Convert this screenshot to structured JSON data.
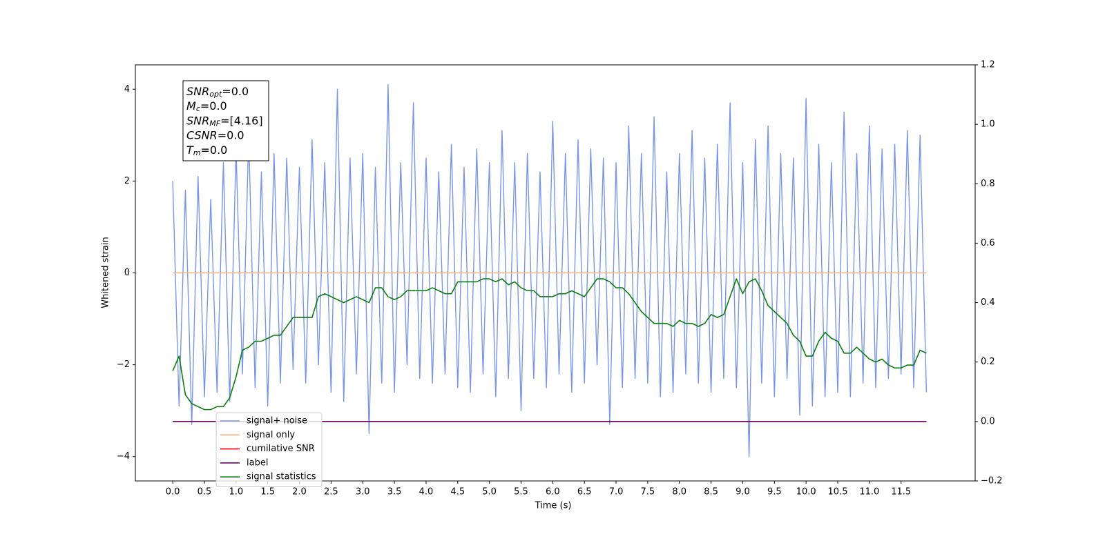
{
  "chart_data": {
    "type": "line",
    "x_label": "Time (s)",
    "y_label": "Whitened strain",
    "xlim": [
      -0.59,
      12.67
    ],
    "ylim": [
      -4.53,
      4.53
    ],
    "y2lim": [
      -0.2,
      1.2
    ],
    "xticks": [
      {
        "value": 0,
        "label": "0.0"
      },
      0.5,
      {
        "value": 1,
        "label": "1.0"
      },
      1.5,
      {
        "value": 2,
        "label": "2.0"
      },
      2.5,
      {
        "value": 3,
        "label": "3.0"
      },
      3.5,
      {
        "value": 4,
        "label": "4.0"
      },
      4.5,
      {
        "value": 5,
        "label": "5.0"
      },
      5.5,
      {
        "value": 6,
        "label": "6.0"
      },
      6.5,
      {
        "value": 7,
        "label": "7.0"
      },
      7.5,
      {
        "value": 8,
        "label": "8.0"
      },
      8.5,
      {
        "value": 9,
        "label": "9.0"
      },
      9.5,
      {
        "value": 10,
        "label": "10.0"
      },
      10.5,
      {
        "value": 11,
        "label": "11.0"
      },
      11.5
    ],
    "yticks": [
      {
        "value": -4,
        "label": "−4"
      },
      {
        "value": -2,
        "label": "−2"
      },
      0,
      2,
      4
    ],
    "y2ticks": [
      {
        "value": -0.2,
        "label": "−0.2"
      },
      {
        "value": 0,
        "label": "0.0"
      },
      0.2,
      0.4,
      0.6,
      0.8,
      {
        "value": 1,
        "label": "1.0"
      },
      1.2
    ],
    "legend": "lower left",
    "annotations": [
      {
        "symbol": "SNR",
        "sub": "opt",
        "text": "=0.0"
      },
      {
        "symbol": "M",
        "sub": "c",
        "text": "=0.0"
      },
      {
        "symbol": "SNR",
        "sub": "MF",
        "text": "=[4.16]"
      },
      {
        "symbol": "CSNR",
        "text": "=0.0"
      },
      {
        "symbol": "T",
        "sub": "m",
        "text": "=0.0"
      }
    ],
    "x": [
      0.0,
      0.1,
      0.2,
      0.3,
      0.4,
      0.5,
      0.6,
      0.7,
      0.8,
      0.9,
      1.0,
      1.1,
      1.2,
      1.3,
      1.4,
      1.5,
      1.6,
      1.7,
      1.8,
      1.9,
      2.0,
      2.1,
      2.2,
      2.3,
      2.4,
      2.5,
      2.6,
      2.7,
      2.8,
      2.9,
      3.0,
      3.1,
      3.2,
      3.3,
      3.4,
      3.5,
      3.6,
      3.7,
      3.8,
      3.9,
      4.0,
      4.1,
      4.2,
      4.3,
      4.4,
      4.5,
      4.6,
      4.7,
      4.8,
      4.9,
      5.0,
      5.1,
      5.2,
      5.3,
      5.4,
      5.5,
      5.6,
      5.7,
      5.8,
      5.9,
      6.0,
      6.1,
      6.2,
      6.3,
      6.4,
      6.5,
      6.6,
      6.7,
      6.8,
      6.9,
      7.0,
      7.1,
      7.2,
      7.3,
      7.4,
      7.5,
      7.6,
      7.7,
      7.8,
      7.9,
      8.0,
      8.1,
      8.2,
      8.3,
      8.4,
      8.5,
      8.6,
      8.7,
      8.8,
      8.9,
      9.0,
      9.1,
      9.2,
      9.3,
      9.4,
      9.5,
      9.6,
      9.7,
      9.8,
      9.9,
      10.0,
      10.1,
      10.2,
      10.3,
      10.4,
      10.5,
      10.6,
      10.7,
      10.8,
      10.9,
      11.0,
      11.1,
      11.2,
      11.3,
      11.4,
      11.5,
      11.6,
      11.7,
      11.8,
      11.9
    ],
    "series": [
      {
        "name": "signal+ noise",
        "color": "#7995e9",
        "values": [
          2.0,
          -2.9,
          1.8,
          -3.3,
          2.1,
          -2.7,
          1.6,
          -2.6,
          2.4,
          -2.8,
          2.7,
          -2.2,
          3.0,
          -2.5,
          2.2,
          -2.9,
          2.6,
          -2.4,
          2.5,
          -2.1,
          2.3,
          -2.4,
          2.9,
          -2.0,
          2.4,
          -2.6,
          4.0,
          -2.8,
          2.5,
          -2.2,
          2.6,
          -3.5,
          2.3,
          -2.4,
          4.1,
          -2.6,
          2.4,
          -2.0,
          3.7,
          -2.3,
          2.5,
          -2.4,
          2.2,
          -2.2,
          2.8,
          -2.5,
          2.3,
          -2.6,
          2.7,
          -2.2,
          2.4,
          -2.7,
          3.1,
          -2.3,
          2.4,
          -3.0,
          2.6,
          -2.3,
          2.2,
          -2.5,
          3.3,
          -2.2,
          2.6,
          -2.6,
          2.9,
          -2.4,
          2.7,
          -2.0,
          2.5,
          -3.3,
          2.4,
          -2.5,
          3.2,
          -2.3,
          2.6,
          -2.4,
          3.4,
          -2.7,
          2.2,
          -2.6,
          2.6,
          -2.2,
          3.1,
          -2.4,
          2.5,
          -2.6,
          2.8,
          -2.3,
          3.7,
          -2.5,
          2.4,
          -4.0,
          2.9,
          -2.4,
          3.2,
          -2.7,
          2.6,
          -2.3,
          2.5,
          -3.1,
          3.8,
          -2.9,
          2.8,
          -2.7,
          2.4,
          -2.6,
          3.5,
          -2.7,
          2.6,
          -2.4,
          3.2,
          -2.5,
          2.7,
          -2.3,
          2.8,
          -2.2,
          3.1,
          -2.5,
          3.0,
          -2.6
        ]
      },
      {
        "name": "signal only",
        "color": "#f0b27a",
        "x": [
          0.0,
          11.9
        ],
        "values": [
          0,
          0
        ]
      },
      {
        "name": "cumilative SNR",
        "color": "#ff0000",
        "axis": "y2",
        "x": [
          0.0,
          11.9
        ],
        "values": [
          0,
          0
        ]
      },
      {
        "name": "label",
        "color": "#6a0a6a",
        "axis": "y2",
        "x": [
          0.0,
          11.9
        ],
        "values": [
          0,
          0
        ]
      },
      {
        "name": "signal statistics",
        "color": "#0a7d0a",
        "axis": "y2",
        "values": [
          0.17,
          0.22,
          0.09,
          0.06,
          0.05,
          0.04,
          0.04,
          0.05,
          0.05,
          0.08,
          0.15,
          0.24,
          0.25,
          0.27,
          0.27,
          0.28,
          0.29,
          0.29,
          0.32,
          0.35,
          0.35,
          0.35,
          0.35,
          0.42,
          0.43,
          0.42,
          0.41,
          0.4,
          0.41,
          0.42,
          0.41,
          0.4,
          0.45,
          0.45,
          0.42,
          0.41,
          0.42,
          0.44,
          0.44,
          0.44,
          0.44,
          0.45,
          0.44,
          0.43,
          0.43,
          0.47,
          0.47,
          0.47,
          0.47,
          0.48,
          0.48,
          0.47,
          0.48,
          0.46,
          0.47,
          0.45,
          0.44,
          0.44,
          0.42,
          0.42,
          0.42,
          0.43,
          0.43,
          0.44,
          0.43,
          0.42,
          0.45,
          0.48,
          0.48,
          0.47,
          0.45,
          0.45,
          0.43,
          0.4,
          0.37,
          0.35,
          0.33,
          0.33,
          0.33,
          0.32,
          0.34,
          0.33,
          0.33,
          0.32,
          0.33,
          0.36,
          0.35,
          0.36,
          0.42,
          0.48,
          0.43,
          0.47,
          0.48,
          0.44,
          0.39,
          0.37,
          0.35,
          0.33,
          0.29,
          0.27,
          0.22,
          0.22,
          0.27,
          0.3,
          0.28,
          0.27,
          0.23,
          0.23,
          0.25,
          0.23,
          0.21,
          0.2,
          0.21,
          0.19,
          0.18,
          0.18,
          0.19,
          0.19,
          0.24,
          0.23
        ]
      }
    ]
  }
}
